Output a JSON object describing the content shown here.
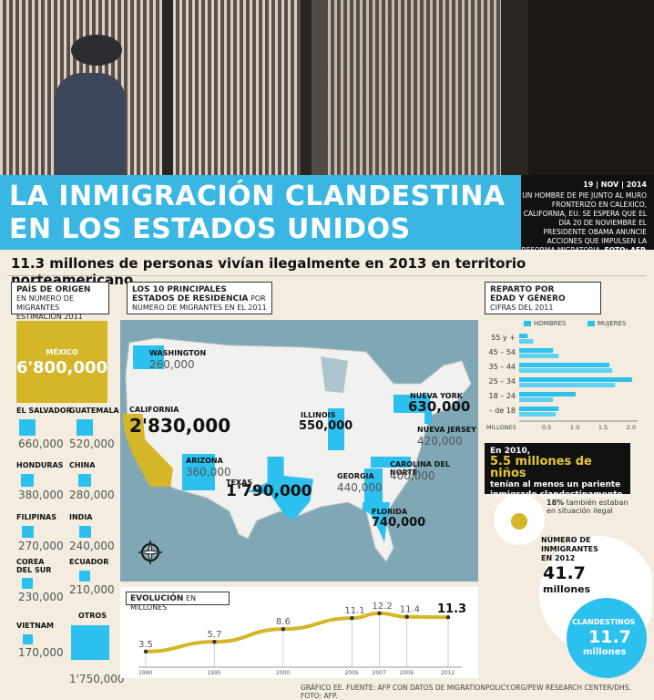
{
  "header": {
    "title_line1": "LA INMIGRACIÓN CLANDESTINA",
    "title_line2": "EN LOS ESTADOS UNIDOS",
    "date": "19 | NOV | 2014",
    "caption_text": "UN HOMBRE DE PIE JUNTO AL MURO FRONTERIZO EN CALEXICO, CALIFORNIA, EU. SE ESPERA QUE EL DÍA 20 DE NOVIEMBRE EL PRESIDENTE OBAMA ANUNCIE ACCIONES QUE IMPULSEN LA REFORMA MIGRATORIA.",
    "caption_credit": "FOTO: AFP."
  },
  "headline": "11.3 millones de personas vivían ilegalmente en 2013 en territorio norteamericano.",
  "origin": {
    "title": "PAÍS DE ORIGEN",
    "subtitle1": "EN NÚMERO DE MIGRANTES",
    "subtitle2": "ESTIMACIÓN  2011",
    "mexico_name": "MÉXICO",
    "mexico_value": "6'800,000",
    "countries": [
      {
        "name": "EL SALVADOR",
        "value": "660,000"
      },
      {
        "name": "GUATEMALA",
        "value": "520,000"
      },
      {
        "name": "HONDURAS",
        "value": "380,000"
      },
      {
        "name": "CHINA",
        "value": "280,000"
      },
      {
        "name": "FILIPINAS",
        "value": "270,000"
      },
      {
        "name": "INDIA",
        "value": "240,000"
      },
      {
        "name": "COREA DEL SUR",
        "value": "230,000"
      },
      {
        "name": "ECUADOR",
        "value": "210,000"
      },
      {
        "name": "VIETNAM",
        "value": "170,000"
      },
      {
        "name": "OTROS",
        "value": "1'750,000"
      }
    ]
  },
  "states": {
    "title_bold": "LOS 10 PRINCIPALES ESTADOS DE RESIDENCIA",
    "title_rest": "POR NÚMERO DE MIGRANTES EN EL 2011",
    "list": [
      {
        "name": "WASHINGTON",
        "value": "260,000"
      },
      {
        "name": "CALIFORNIA",
        "value": "2'830,000"
      },
      {
        "name": "ARIZONA",
        "value": "360,000"
      },
      {
        "name": "TEXAS",
        "value": "1'790,000"
      },
      {
        "name": "ILLINOIS",
        "value": "550,000"
      },
      {
        "name": "GEORGIA",
        "value": "440,000"
      },
      {
        "name": "FLORIDA",
        "value": "740,000"
      },
      {
        "name": "NUEVA YORK",
        "value": "630,000"
      },
      {
        "name": "NUEVA JERSEY",
        "value": "420,000"
      },
      {
        "name": "CAROLINA DEL NORTE",
        "value": "400,000"
      }
    ]
  },
  "age": {
    "title1": "REPARTO POR",
    "title2": "EDAD Y GÉNERO",
    "subtitle": "CIFRAS DEL 2011",
    "men_label": "HOMBRES",
    "women_label": "MUJERES",
    "axis_label": "MILLONES"
  },
  "kids": {
    "line1": "En 2010,",
    "big": "5.5 millones de niños",
    "line2": "tenían al menos un pariente",
    "line3": "inmigrado clandestinamente",
    "pct": "18%",
    "pct_text1": "también estaban",
    "pct_text2": "en situación ilegal"
  },
  "totals": {
    "label1": "NÚMERO DE",
    "label2": "INMIGRANTES",
    "label3": "EN 2012",
    "value": "41.7",
    "unit": "millones",
    "clan_label": "CLANDESTINOS",
    "clan_value": "11.7",
    "clan_unit": "millones"
  },
  "evolution": {
    "title_bold": "EVOLUCIÓN",
    "title_rest": "EN MILLONES"
  },
  "footer": "GRÁFICO EE. FUENTE: AFP CON DATOS DE MIGRATIONPOLICY.ORG/PEW RESEARCH CENTER/DHS. FOTO: AFP.",
  "colors": {
    "accent": "#3ab6e3",
    "gold": "#d4b628",
    "cyan": "#2cc0ee",
    "men": "#2cc0ee",
    "women": "#2cc0ee"
  },
  "chart_data": [
    {
      "type": "line",
      "title": "EVOLUCIÓN EN MILLONES",
      "x": [
        1990,
        1995,
        2000,
        2005,
        2007,
        2009,
        2012
      ],
      "series": [
        {
          "values": [
            3.5,
            5.7,
            8.6,
            11.1,
            12.2,
            11.4,
            11.3
          ]
        }
      ],
      "value_labels": [
        "3.5",
        "5.7",
        "8.6",
        "11.1",
        "12.2",
        "11.4",
        "11.3"
      ],
      "ylim": [
        2,
        13
      ]
    },
    {
      "type": "bar",
      "title": "REPARTO POR EDAD Y GÉNERO",
      "categories": [
        "55 y +",
        "45 – 54",
        "35 – 44",
        "25 – 34",
        "18 – 24",
        "– de 18"
      ],
      "series": [
        {
          "name": "HOMBRES",
          "values": [
            0.15,
            0.6,
            1.6,
            2.0,
            1.0,
            0.7
          ]
        },
        {
          "name": "MUJERES",
          "values": [
            0.25,
            0.7,
            1.65,
            1.7,
            0.6,
            0.65
          ]
        }
      ],
      "xlabel": "MILLONES",
      "xticks": [
        "0.5",
        "1.0",
        "1.5",
        "2.0"
      ],
      "xlim": [
        0,
        2.1
      ]
    }
  ]
}
